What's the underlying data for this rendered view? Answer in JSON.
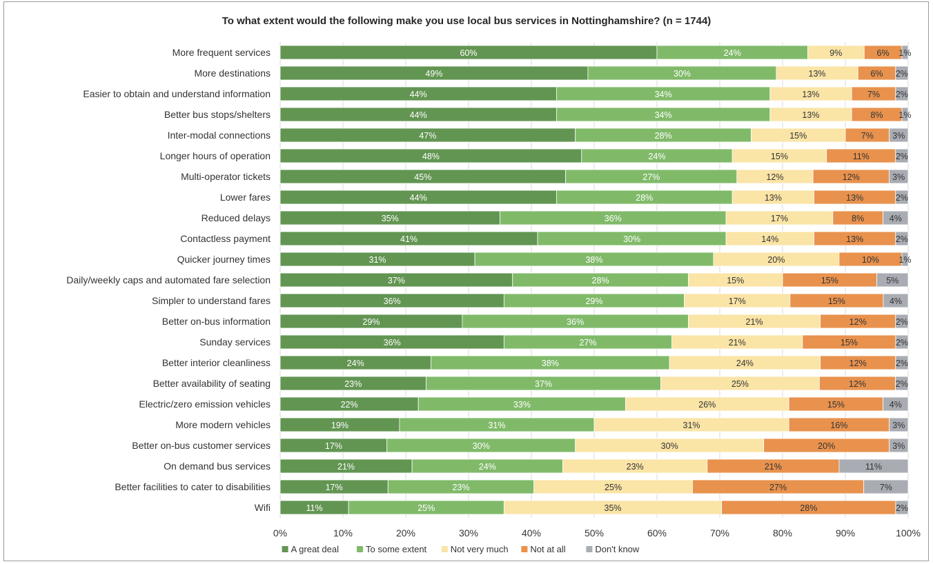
{
  "chart_data": {
    "type": "bar",
    "orientation": "horizontal",
    "stacked": "100%",
    "title": "To what extent would the following make you use local bus services in Nottinghamshire? (n = 1744)",
    "categories": [
      "More frequent services",
      "More destinations",
      "Easier to obtain and understand information",
      "Better bus stops/shelters",
      "Inter-modal connections",
      "Longer hours of operation",
      "Multi-operator tickets",
      "Lower fares",
      "Reduced delays",
      "Contactless payment",
      "Quicker journey times",
      "Daily/weekly caps and automated fare selection",
      "Simpler to understand fares",
      "Better on-bus information",
      "Sunday services",
      "Better interior cleanliness",
      "Better availability of seating",
      "Electric/zero emission vehicles",
      "More modern vehicles",
      "Better on-bus customer services",
      "On demand bus services",
      "Better facilities to cater to disabilities",
      "Wifi"
    ],
    "series": [
      {
        "name": "A great deal",
        "color": "#629552",
        "label_color": "#ffffff",
        "values": [
          60,
          49,
          44,
          44,
          47,
          48,
          45,
          44,
          35,
          41,
          31,
          37,
          36,
          29,
          36,
          24,
          23,
          22,
          19,
          17,
          21,
          17,
          11
        ]
      },
      {
        "name": "To some extent",
        "color": "#80ba69",
        "label_color": "#ffffff",
        "values": [
          24,
          30,
          34,
          34,
          28,
          24,
          27,
          28,
          36,
          30,
          38,
          28,
          29,
          36,
          27,
          38,
          37,
          33,
          31,
          30,
          24,
          23,
          25
        ]
      },
      {
        "name": "Not very much",
        "color": "#fae4a6",
        "label_color": "#333333",
        "values": [
          9,
          13,
          13,
          13,
          15,
          15,
          12,
          13,
          17,
          14,
          20,
          15,
          17,
          21,
          21,
          24,
          25,
          26,
          31,
          30,
          23,
          25,
          35
        ]
      },
      {
        "name": "Not at all",
        "color": "#e8924e",
        "label_color": "#333333",
        "values": [
          6,
          6,
          7,
          8,
          7,
          11,
          12,
          13,
          8,
          13,
          10,
          15,
          15,
          12,
          15,
          12,
          12,
          15,
          16,
          20,
          21,
          27,
          28
        ]
      },
      {
        "name": "Don't know",
        "color": "#a9adb3",
        "label_color": "#333333",
        "values": [
          1,
          2,
          2,
          1,
          3,
          2,
          3,
          2,
          4,
          2,
          1,
          5,
          4,
          2,
          2,
          2,
          2,
          4,
          3,
          3,
          11,
          7,
          2
        ]
      }
    ],
    "xlim": [
      0,
      100
    ],
    "x_ticks": [
      "0%",
      "10%",
      "20%",
      "30%",
      "40%",
      "50%",
      "60%",
      "70%",
      "80%",
      "90%",
      "100%"
    ],
    "value_suffix": "%",
    "grid": true,
    "legend_position": "bottom"
  }
}
